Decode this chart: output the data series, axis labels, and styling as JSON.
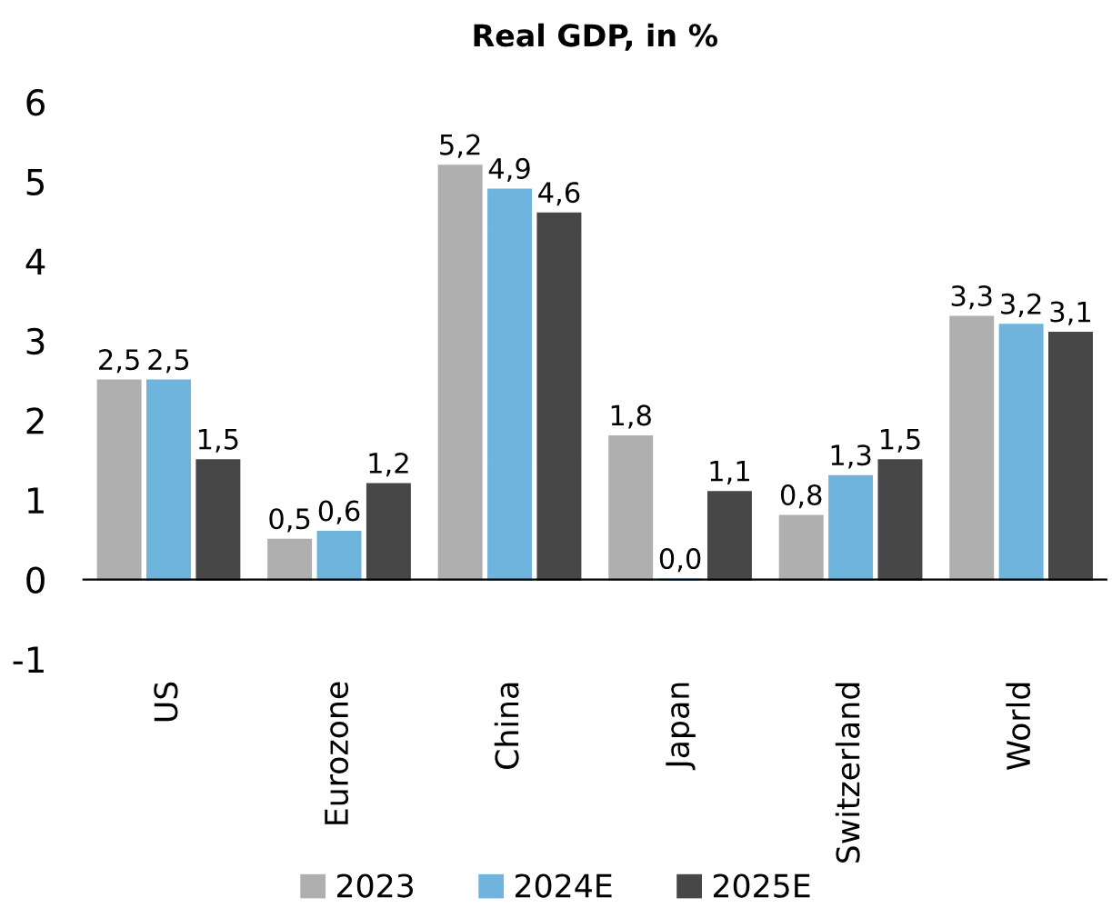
{
  "chart_data": {
    "type": "bar",
    "title": "Real GDP, in %",
    "categories": [
      "US",
      "Eurozone",
      "China",
      "Japan",
      "Switzerland",
      "World"
    ],
    "series": [
      {
        "name": "2023",
        "color": "#afafaf",
        "values": [
          2.5,
          0.5,
          5.2,
          1.8,
          0.8,
          3.3
        ],
        "value_labels": [
          "2,5",
          "0,5",
          "5,2",
          "1,8",
          "0,8",
          "3,3"
        ]
      },
      {
        "name": "2024E",
        "color": "#6eb4dc",
        "values": [
          2.5,
          0.6,
          4.9,
          0.0,
          1.3,
          3.2
        ],
        "value_labels": [
          "2,5",
          "0,6",
          "4,9",
          "0,0",
          "1,3",
          "3,2"
        ]
      },
      {
        "name": "2025E",
        "color": "#474747",
        "values": [
          1.5,
          1.2,
          4.6,
          1.1,
          1.5,
          3.1
        ],
        "value_labels": [
          "1,5",
          "1,2",
          "4,6",
          "1,1",
          "1,5",
          "3,1"
        ]
      }
    ],
    "ylim": [
      -1,
      6
    ],
    "yticks": [
      -1,
      0,
      1,
      2,
      3,
      4,
      5,
      6
    ],
    "legend": "bottom"
  }
}
